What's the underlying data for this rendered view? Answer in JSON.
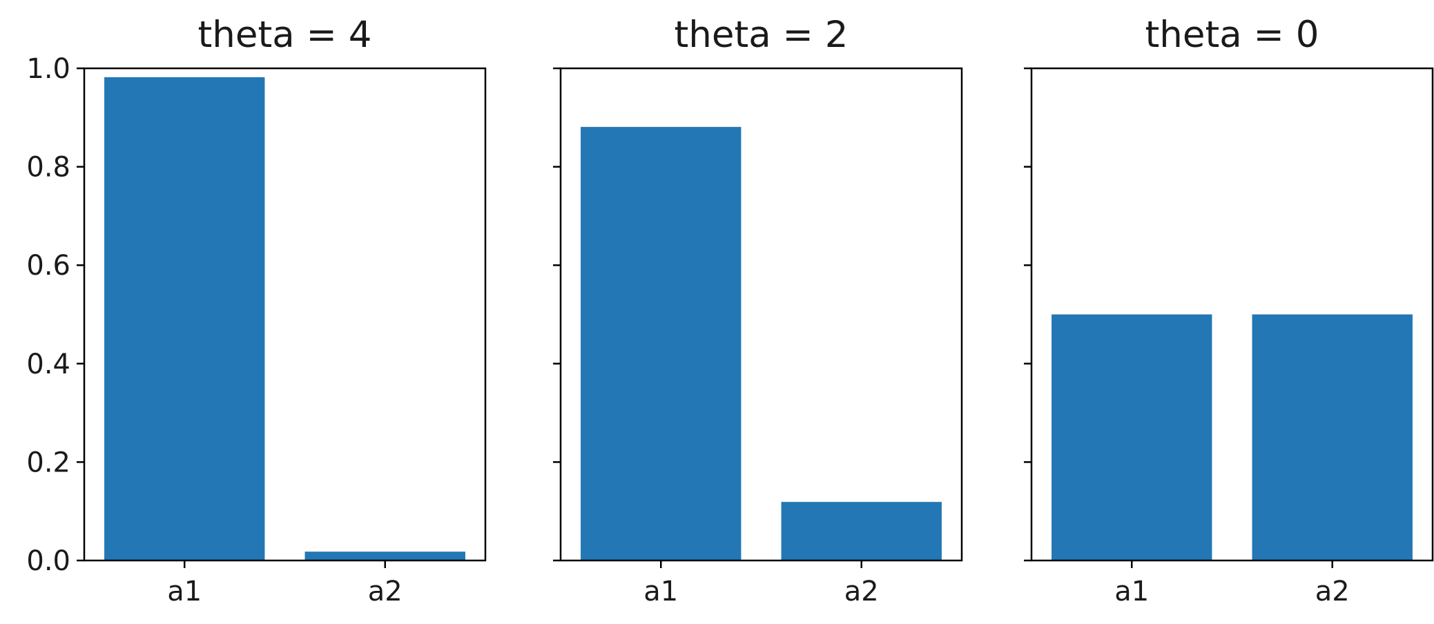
{
  "colors": {
    "bar": "#2377b4",
    "axis": "#000000",
    "text": "#1a1a1a",
    "background": "#ffffff"
  },
  "chart_data": [
    {
      "type": "bar",
      "title": "theta = 4",
      "categories": [
        "a1",
        "a2"
      ],
      "values": [
        0.982,
        0.018
      ],
      "ylim": [
        0,
        1.0
      ],
      "yticks": [
        "0.0",
        "0.2",
        "0.4",
        "0.6",
        "0.8",
        "1.0"
      ],
      "show_ytick_labels": true,
      "grid": false
    },
    {
      "type": "bar",
      "title": "theta = 2",
      "categories": [
        "a1",
        "a2"
      ],
      "values": [
        0.881,
        0.119
      ],
      "ylim": [
        0,
        1.0
      ],
      "yticks": [
        "0.0",
        "0.2",
        "0.4",
        "0.6",
        "0.8",
        "1.0"
      ],
      "show_ytick_labels": false,
      "grid": false
    },
    {
      "type": "bar",
      "title": "theta = 0",
      "categories": [
        "a1",
        "a2"
      ],
      "values": [
        0.5,
        0.5
      ],
      "ylim": [
        0,
        1.0
      ],
      "yticks": [
        "0.0",
        "0.2",
        "0.4",
        "0.6",
        "0.8",
        "1.0"
      ],
      "show_ytick_labels": false,
      "grid": false
    }
  ]
}
